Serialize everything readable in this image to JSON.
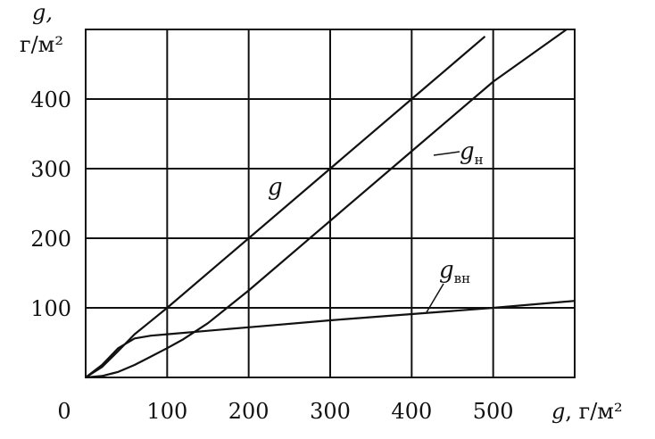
{
  "chart_data": {
    "type": "line",
    "title": "",
    "xlabel_symbol": "g",
    "xlabel_unit": ", г/м²",
    "ylabel_symbol": "g,",
    "ylabel_unit": "г/м²",
    "xlim": [
      0,
      600
    ],
    "ylim": [
      0,
      500
    ],
    "grid": true,
    "x_ticks": [
      0,
      100,
      200,
      300,
      400,
      500
    ],
    "y_ticks": [
      100,
      200,
      300,
      400
    ],
    "series": [
      {
        "name": "g",
        "x": [
          0,
          20,
          40,
          60,
          80,
          100,
          200,
          300,
          400,
          490
        ],
        "y": [
          0,
          15,
          38,
          62,
          81,
          100,
          200,
          300,
          400,
          490
        ]
      },
      {
        "name": "gн",
        "name_base": "g",
        "name_sub": "н",
        "x": [
          0,
          20,
          40,
          60,
          80,
          100,
          120,
          150,
          200,
          300,
          400,
          500,
          590
        ],
        "y": [
          0,
          2,
          8,
          18,
          30,
          42,
          55,
          78,
          125,
          225,
          325,
          425,
          500
        ]
      },
      {
        "name": "gвн",
        "name_base": "g",
        "name_sub": "вн",
        "x": [
          0,
          20,
          40,
          60,
          80,
          100,
          150,
          200,
          300,
          400,
          500,
          600
        ],
        "y": [
          0,
          18,
          42,
          56,
          60,
          62,
          67,
          72,
          82,
          91,
          100,
          110
        ]
      }
    ]
  }
}
